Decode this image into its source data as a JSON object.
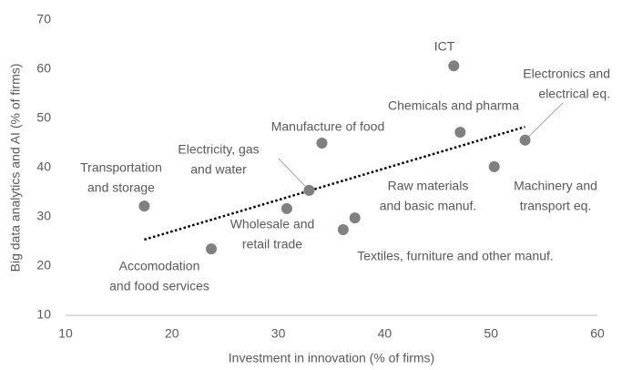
{
  "chart_data": {
    "type": "scatter",
    "x_label": "Investment in innovation (% of firms)",
    "y_label": "Big data analytics and AI (% of firms)",
    "labels": [
      [
        "Transportation",
        "and storage"
      ],
      [
        "Accomodation",
        "and food services"
      ],
      [
        "Wholesale and",
        "retail trade"
      ],
      [
        "Electricity, gas",
        "and water"
      ],
      [
        "Manufacture of food"
      ],
      [
        "Textiles, furniture and other manuf."
      ],
      [
        "Raw materials",
        "and basic manuf."
      ],
      [
        "ICT"
      ],
      [
        "Chemicals and pharma"
      ],
      [
        "Machinery and",
        "transport eq."
      ],
      [
        "Electronics and",
        "electrical eq."
      ]
    ],
    "x": [
      17.4,
      23.7,
      30.8,
      32.9,
      34.1,
      36.1,
      37.2,
      46.5,
      47.1,
      50.3,
      53.2
    ],
    "y": [
      32.2,
      23.5,
      31.7,
      35.4,
      45.0,
      27.4,
      29.8,
      60.7,
      47.2,
      40.2,
      45.6
    ],
    "color": "#808080",
    "trendline": true,
    "xlim": [
      10,
      60
    ],
    "xticks": [
      10,
      20,
      30,
      40,
      50,
      60
    ],
    "ylim": [
      10,
      70
    ],
    "yticks": [
      10,
      20,
      30,
      40,
      50,
      60,
      70
    ],
    "grid": false
  }
}
